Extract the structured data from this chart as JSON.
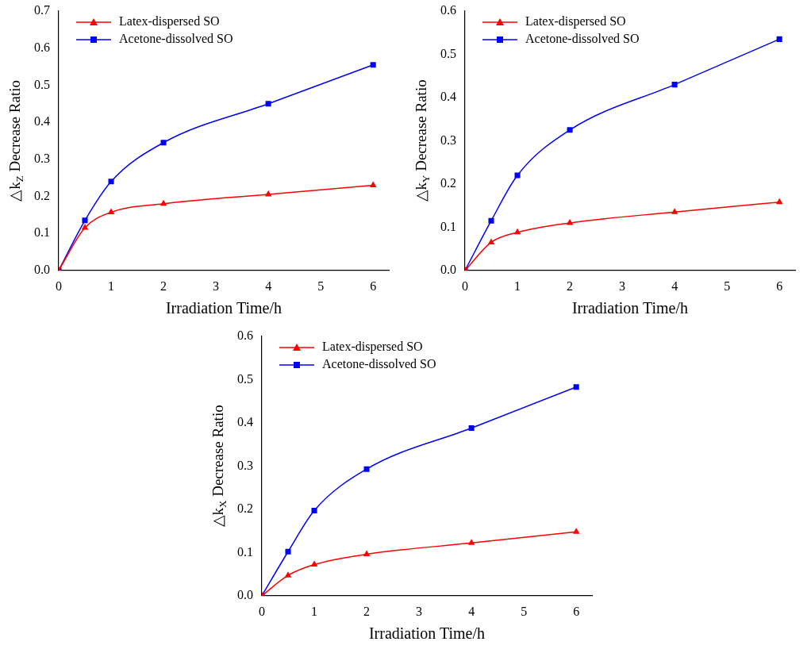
{
  "chart_data": [
    {
      "type": "line",
      "xlabel": "Irradiation Time/h",
      "ylabel": "△k$_{Z}$ Decrease Ratio",
      "legend": "top left",
      "xlim": [
        0,
        6.3
      ],
      "xticks": [
        0,
        1,
        2,
        3,
        4,
        5,
        6
      ],
      "ylim": [
        0,
        0.7
      ],
      "yticks": [
        {
          "value": 0,
          "label": "0.0"
        },
        {
          "value": 0.1,
          "label": "0.1"
        },
        {
          "value": 0.2,
          "label": "0.2"
        },
        {
          "value": 0.3,
          "label": "0.3"
        },
        {
          "value": 0.4,
          "label": "0.4"
        },
        {
          "value": 0.5,
          "label": "0.5"
        },
        {
          "value": 0.6,
          "label": "0.6"
        },
        {
          "value": 0.7,
          "label": "0.7"
        }
      ],
      "x": [
        0,
        0.5,
        1,
        2,
        4,
        6
      ],
      "series": [
        {
          "name": "Latex-dispersed SO",
          "color": "#ff0000",
          "marker": "triangle",
          "values": [
            0,
            0.115,
            0.157,
            0.18,
            0.205,
            0.23
          ]
        },
        {
          "name": "Acetone-dissolved SO",
          "color": "#0000ff",
          "marker": "square",
          "values": [
            0,
            0.135,
            0.24,
            0.345,
            0.45,
            0.555
          ]
        }
      ]
    },
    {
      "type": "line",
      "xlabel": "Irradiation Time/h",
      "ylabel": "△k$_{Y}$ Decrease Ratio",
      "legend": "top left",
      "xlim": [
        0,
        6.3
      ],
      "xticks": [
        0,
        1,
        2,
        3,
        4,
        5,
        6
      ],
      "ylim": [
        0,
        0.6
      ],
      "yticks": [
        {
          "value": 0,
          "label": "0.0"
        },
        {
          "value": 0.1,
          "label": "0.1"
        },
        {
          "value": 0.2,
          "label": "0.2"
        },
        {
          "value": 0.3,
          "label": "0.3"
        },
        {
          "value": 0.4,
          "label": "0.4"
        },
        {
          "value": 0.5,
          "label": "0.5"
        },
        {
          "value": 0.6,
          "label": "0.6"
        }
      ],
      "x": [
        0,
        0.5,
        1,
        2,
        4,
        6
      ],
      "series": [
        {
          "name": "Latex-dispersed SO",
          "color": "#ff0000",
          "marker": "triangle",
          "values": [
            0,
            0.065,
            0.088,
            0.11,
            0.135,
            0.158
          ]
        },
        {
          "name": "Acetone-dissolved SO",
          "color": "#0000ff",
          "marker": "square",
          "values": [
            0,
            0.115,
            0.22,
            0.325,
            0.43,
            0.535
          ]
        }
      ]
    },
    {
      "type": "line",
      "xlabel": "Irradiation Time/h",
      "ylabel": "△k$_{X}$ Decrease Ratio",
      "legend": "top left",
      "xlim": [
        0,
        6.3
      ],
      "xticks": [
        0,
        1,
        2,
        3,
        4,
        5,
        6
      ],
      "ylim": [
        0,
        0.6
      ],
      "yticks": [
        {
          "value": 0,
          "label": "0.0"
        },
        {
          "value": 0.1,
          "label": "0.1"
        },
        {
          "value": 0.2,
          "label": "0.2"
        },
        {
          "value": 0.3,
          "label": "0.3"
        },
        {
          "value": 0.4,
          "label": "0.4"
        },
        {
          "value": 0.5,
          "label": "0.5"
        },
        {
          "value": 0.6,
          "label": "0.6"
        }
      ],
      "x": [
        0,
        0.5,
        1,
        2,
        4,
        6
      ],
      "series": [
        {
          "name": "Latex-dispersed SO",
          "color": "#ff0000",
          "marker": "triangle",
          "values": [
            0,
            0.047,
            0.072,
            0.096,
            0.122,
            0.148
          ]
        },
        {
          "name": "Acetone-dissolved SO",
          "color": "#0000ff",
          "marker": "square",
          "values": [
            0,
            0.102,
            0.197,
            0.293,
            0.388,
            0.483
          ]
        }
      ]
    }
  ]
}
